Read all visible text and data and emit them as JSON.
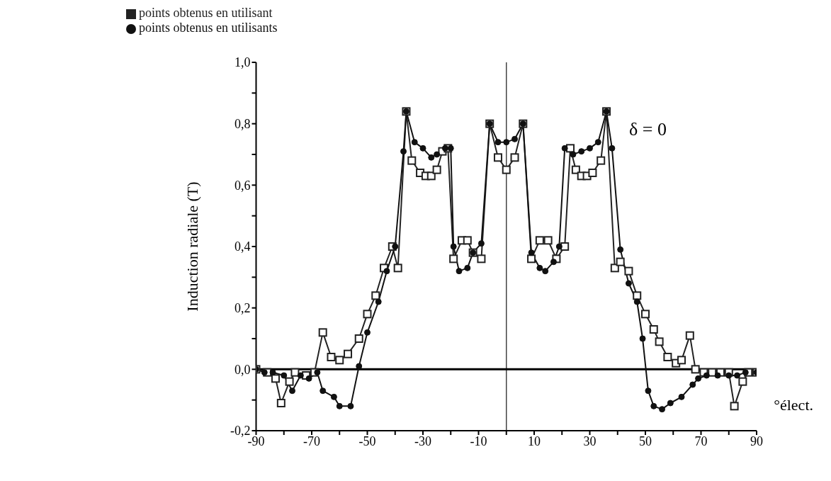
{
  "chart_data": {
    "type": "line",
    "xlabel": "°élect.",
    "ylabel": "Induction radiale (T)",
    "annotations": [
      "δ = 0"
    ],
    "xlim": [
      -90,
      90
    ],
    "xticks": [
      -90,
      {
        "value": -80,
        "label": null
      },
      -70,
      {
        "value": -60,
        "label": null
      },
      -50,
      {
        "value": -40,
        "label": null
      },
      -30,
      {
        "value": -20,
        "label": null
      },
      -10,
      {
        "value": 0,
        "label": null
      },
      10,
      {
        "value": 20,
        "label": null
      },
      30,
      {
        "value": 40,
        "label": null
      },
      50,
      {
        "value": 60,
        "label": null
      },
      70,
      {
        "value": 80,
        "label": null
      },
      90
    ],
    "ylim": [
      -0.2,
      1.0
    ],
    "yticks": [
      {
        "value": -0.2,
        "label": "-0,2"
      },
      {
        "value": -0.1,
        "label": null
      },
      {
        "value": 0,
        "label": "0,0"
      },
      {
        "value": 0.1,
        "label": null
      },
      {
        "value": 0.2,
        "label": "0,2"
      },
      {
        "value": 0.3,
        "label": null
      },
      {
        "value": 0.4,
        "label": "0,4"
      },
      {
        "value": 0.5,
        "label": null
      },
      {
        "value": 0.6,
        "label": "0,6"
      },
      {
        "value": 0.7,
        "label": null
      },
      {
        "value": 0.8,
        "label": "0,8"
      },
      {
        "value": 0.9,
        "label": null
      },
      {
        "value": 1.0,
        "label": "1,0"
      }
    ],
    "ref_lines": [
      {
        "axis": "x",
        "value": 0,
        "label": null,
        "color": "#444444"
      },
      {
        "axis": "y",
        "value": 0,
        "label": null,
        "color": "#000000"
      }
    ],
    "legend": "top left",
    "grid": false,
    "series": [
      {
        "name": "points obtenus en utilisant",
        "color": "#222222",
        "marker": "square",
        "x": [
          -90,
          -86,
          -83,
          -81,
          -78,
          -76,
          -72,
          -69,
          -66,
          -63,
          -60,
          -57,
          -53,
          -50,
          -47,
          -44,
          -41,
          -39,
          -36,
          -34,
          -31,
          -29,
          -27,
          -25,
          -23,
          -21,
          -19,
          -16,
          -14,
          -12,
          -9,
          -6,
          -3,
          0,
          3,
          6,
          9,
          12,
          15,
          18,
          21,
          23,
          25,
          27,
          29,
          31,
          34,
          36,
          39,
          41,
          44,
          47,
          50,
          53,
          55,
          58,
          61,
          63,
          66,
          68,
          71,
          74,
          77,
          80,
          82,
          85,
          87,
          90
        ],
        "values": [
          0,
          -0.01,
          -0.03,
          -0.11,
          -0.04,
          -0.01,
          -0.02,
          -0.01,
          0.12,
          0.04,
          0.03,
          0.05,
          0.1,
          0.18,
          0.24,
          0.33,
          0.4,
          0.33,
          0.84,
          0.68,
          0.64,
          0.63,
          0.63,
          0.65,
          0.71,
          0.72,
          0.36,
          0.42,
          0.42,
          0.38,
          0.36,
          0.8,
          0.69,
          0.65,
          0.69,
          0.8,
          0.36,
          0.42,
          0.42,
          0.36,
          0.4,
          0.72,
          0.65,
          0.63,
          0.63,
          0.64,
          0.68,
          0.84,
          0.33,
          0.35,
          0.32,
          0.24,
          0.18,
          0.13,
          0.09,
          0.04,
          0.02,
          0.03,
          0.11,
          0,
          -0.01,
          -0.01,
          -0.01,
          -0.01,
          -0.12,
          -0.04,
          -0.01,
          -0.01
        ]
      },
      {
        "name": "points obtenus en utilisants",
        "color": "#111111",
        "marker": "circle",
        "x": [
          -90,
          -87,
          -84,
          -80,
          -77,
          -74,
          -71,
          -68,
          -66,
          -62,
          -60,
          -56,
          -53,
          -50,
          -46,
          -43,
          -40,
          -37,
          -36,
          -33,
          -30,
          -27,
          -25,
          -22,
          -20,
          -19,
          -17,
          -14,
          -12,
          -9,
          -6,
          -3,
          0,
          3,
          6,
          9,
          12,
          14,
          17,
          19,
          21,
          24,
          27,
          30,
          33,
          36,
          38,
          41,
          44,
          47,
          49,
          51,
          53,
          56,
          59,
          63,
          67,
          69,
          72,
          76,
          80,
          83,
          86,
          90
        ],
        "values": [
          0,
          -0.01,
          -0.01,
          -0.02,
          -0.07,
          -0.02,
          -0.03,
          -0.01,
          -0.07,
          -0.09,
          -0.12,
          -0.12,
          0.01,
          0.12,
          0.22,
          0.32,
          0.4,
          0.71,
          0.84,
          0.74,
          0.72,
          0.69,
          0.7,
          0.72,
          0.72,
          0.4,
          0.32,
          0.33,
          0.38,
          0.41,
          0.8,
          0.74,
          0.74,
          0.75,
          0.8,
          0.38,
          0.33,
          0.32,
          0.35,
          0.4,
          0.72,
          0.7,
          0.71,
          0.72,
          0.74,
          0.84,
          0.72,
          0.39,
          0.28,
          0.22,
          0.1,
          -0.07,
          -0.12,
          -0.13,
          -0.11,
          -0.09,
          -0.05,
          -0.03,
          -0.02,
          -0.02,
          -0.02,
          -0.02,
          -0.01,
          -0.01
        ]
      }
    ]
  }
}
